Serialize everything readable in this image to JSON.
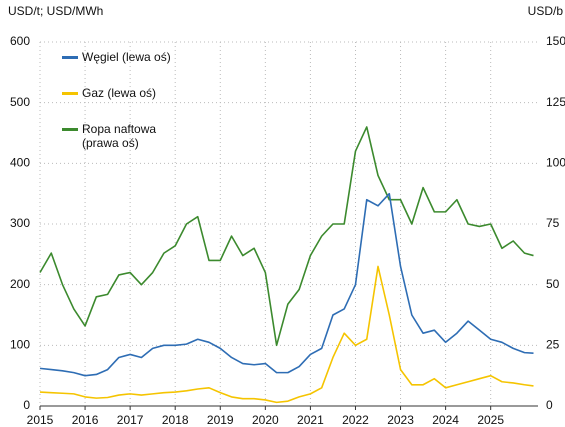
{
  "chart_data": {
    "type": "line",
    "y_label": "USD/t; USD/MWh",
    "y2_label": "USD/b",
    "x": [
      2015,
      2015.25,
      2015.5,
      2015.75,
      2016,
      2016.25,
      2016.5,
      2016.75,
      2017,
      2017.25,
      2017.5,
      2017.75,
      2018,
      2018.25,
      2018.5,
      2018.75,
      2019,
      2019.25,
      2019.5,
      2019.75,
      2020,
      2020.25,
      2020.5,
      2020.75,
      2021,
      2021.25,
      2021.5,
      2021.75,
      2022,
      2022.25,
      2022.5,
      2022.75,
      2023,
      2023.25,
      2023.5,
      2023.75,
      2024,
      2024.25,
      2024.5,
      2024.75,
      2025,
      2025.25,
      2025.5,
      2025.75,
      2025.95
    ],
    "series": [
      {
        "name": "Węgiel (lewa oś)",
        "color": "#2e6db4",
        "values": [
          62,
          60,
          58,
          55,
          50,
          52,
          60,
          80,
          85,
          80,
          95,
          100,
          100,
          102,
          110,
          105,
          95,
          80,
          70,
          68,
          70,
          55,
          55,
          65,
          85,
          95,
          150,
          160,
          200,
          340,
          330,
          350,
          230,
          150,
          120,
          125,
          105,
          120,
          140,
          125,
          110,
          105,
          95,
          88,
          87
        ]
      },
      {
        "name": "Gaz (lewa oś)",
        "color": "#f5c400",
        "values": [
          23,
          22,
          21,
          20,
          15,
          13,
          14,
          18,
          20,
          18,
          20,
          22,
          23,
          25,
          28,
          30,
          22,
          15,
          12,
          12,
          10,
          6,
          8,
          15,
          20,
          30,
          80,
          120,
          100,
          110,
          230,
          150,
          60,
          35,
          35,
          45,
          30,
          35,
          40,
          45,
          50,
          40,
          38,
          35,
          33
        ]
      },
      {
        "name": "Ropa naftowa (prawa oś)",
        "color": "#3c8a2e",
        "axis": "y2",
        "values": [
          55,
          63,
          50,
          40,
          33,
          45,
          46,
          54,
          55,
          50,
          55,
          63,
          66,
          75,
          78,
          60,
          60,
          70,
          62,
          65,
          55,
          25,
          42,
          48,
          62,
          70,
          75,
          75,
          105,
          115,
          95,
          85,
          85,
          75,
          90,
          80,
          80,
          85,
          75,
          74,
          75,
          65,
          68,
          63,
          62
        ]
      }
    ],
    "xlim": [
      2015,
      2026.05
    ],
    "xticks": [
      2015,
      2016,
      2017,
      2018,
      2019,
      2020,
      2021,
      2022,
      2023,
      2024,
      2025
    ],
    "ylim": [
      0,
      600
    ],
    "yticks": [
      0,
      100,
      200,
      300,
      400,
      500,
      600
    ],
    "y2lim": [
      0,
      150
    ],
    "y2ticks": [
      0,
      25,
      50,
      75,
      100,
      125,
      150
    ],
    "grid": true,
    "legend": "upper left"
  }
}
